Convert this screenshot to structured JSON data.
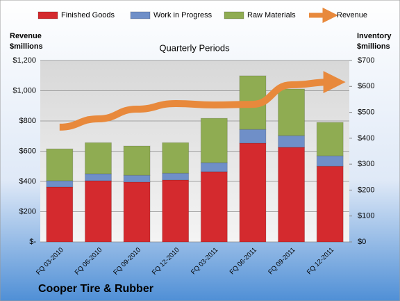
{
  "chart_data": {
    "type": "bar",
    "title": "Cooper Tire & Rubber",
    "subtitle": "Quarterly Periods",
    "y_label": [
      "Revenue",
      "$millions"
    ],
    "y2_label": [
      "Inventory",
      "$millions"
    ],
    "categories": [
      "FQ 03-2010",
      "FQ 06-2010",
      "FQ 09-2010",
      "FQ 12-2010",
      "FQ 03-2011",
      "FQ 06-2011",
      "FQ 09-2011",
      "FQ 12-2011"
    ],
    "series": [
      {
        "name": "Finished Goods",
        "color": "#d42a2e",
        "axis": "y2",
        "values": [
          212,
          236,
          231,
          239,
          271,
          381,
          365,
          292
        ]
      },
      {
        "name": "Work in Progress",
        "color": "#6f8fc8",
        "axis": "y2",
        "values": [
          24,
          27,
          26,
          26,
          35,
          53,
          45,
          40
        ]
      },
      {
        "name": "Raw Materials",
        "color": "#8fac52",
        "axis": "y2",
        "values": [
          123,
          120,
          113,
          118,
          171,
          207,
          180,
          129
        ]
      },
      {
        "name": "Revenue",
        "color": "#e8893c",
        "type": "line",
        "values": [
          759,
          814,
          878,
          915,
          906,
          910,
          1039,
          1057
        ]
      }
    ],
    "ylim": [
      0,
      1200
    ],
    "yticks": [
      {
        "value": 0,
        "label": "$-"
      },
      {
        "value": 200,
        "label": "$200"
      },
      {
        "value": 400,
        "label": "$400"
      },
      {
        "value": 600,
        "label": "$600"
      },
      {
        "value": 800,
        "label": "$800"
      },
      {
        "value": 1000,
        "label": "$1,000"
      },
      {
        "value": 1200,
        "label": "$1,200"
      }
    ],
    "y2lim": [
      0,
      700
    ],
    "y2ticks": [
      {
        "value": 0,
        "label": "$0"
      },
      {
        "value": 100,
        "label": "$100"
      },
      {
        "value": 200,
        "label": "$200"
      },
      {
        "value": 300,
        "label": "$300"
      },
      {
        "value": 400,
        "label": "$400"
      },
      {
        "value": 500,
        "label": "$500"
      },
      {
        "value": 600,
        "label": "$600"
      },
      {
        "value": 700,
        "label": "$700"
      }
    ],
    "grid": true,
    "legend": "top"
  }
}
